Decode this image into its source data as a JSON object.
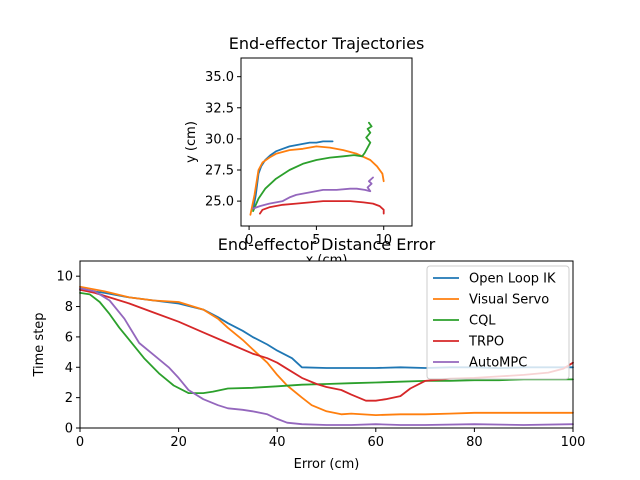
{
  "chart_data": [
    {
      "type": "line",
      "title": "End-effector Trajectories",
      "xlabel": "x (cm)",
      "ylabel": "y (cm)",
      "xlim": [
        -0.6,
        12.1
      ],
      "ylim": [
        23.0,
        36.5
      ],
      "xticks": [
        0,
        5,
        10
      ],
      "xtick_labels": [
        "0",
        "5",
        "10"
      ],
      "yticks": [
        25.0,
        27.5,
        30.0,
        32.5,
        35.0
      ],
      "ytick_labels": [
        "25.0",
        "27.5",
        "30.0",
        "32.5",
        "35.0"
      ],
      "grid": false,
      "series": [
        {
          "color": "#1f77b4",
          "x": [
            0.3,
            0.5,
            0.7,
            0.9,
            1.2,
            1.6,
            2.0,
            2.5,
            3.0,
            3.5,
            4.0,
            4.5,
            5.0,
            5.5,
            6.0,
            6.2
          ],
          "y": [
            24.3,
            25.5,
            27.2,
            27.8,
            28.3,
            28.7,
            29.0,
            29.2,
            29.4,
            29.5,
            29.6,
            29.7,
            29.7,
            29.8,
            29.8,
            29.8
          ]
        },
        {
          "color": "#ff7f0e",
          "x": [
            0.1,
            0.4,
            0.7,
            1.0,
            1.5,
            2.0,
            3.0,
            4.0,
            5.0,
            6.0,
            7.0,
            8.0,
            9.0,
            9.5,
            9.9,
            10.0
          ],
          "y": [
            23.9,
            25.5,
            27.5,
            28.1,
            28.5,
            28.8,
            29.1,
            29.2,
            29.4,
            29.3,
            29.1,
            28.8,
            28.3,
            27.8,
            27.2,
            26.6
          ]
        },
        {
          "color": "#2ca02c",
          "x": [
            0.3,
            0.7,
            1.2,
            2.0,
            3.0,
            4.0,
            5.0,
            6.0,
            7.0,
            7.8,
            8.4,
            8.6,
            8.8,
            9.0,
            8.7,
            9.0,
            8.8,
            9.1,
            8.9
          ],
          "y": [
            24.2,
            25.2,
            26.0,
            26.8,
            27.5,
            28.0,
            28.3,
            28.5,
            28.6,
            28.7,
            28.6,
            28.9,
            29.3,
            29.7,
            30.1,
            30.5,
            30.8,
            31.0,
            31.3
          ]
        },
        {
          "color": "#d62728",
          "x": [
            0.8,
            1.0,
            1.5,
            2.5,
            3.5,
            4.5,
            5.5,
            6.5,
            7.5,
            8.5,
            9.2,
            9.7,
            10.0,
            10.0
          ],
          "y": [
            24.0,
            24.3,
            24.5,
            24.7,
            24.8,
            24.9,
            25.0,
            25.0,
            25.0,
            24.9,
            24.8,
            24.6,
            24.3,
            24.0
          ]
        },
        {
          "color": "#9467bd",
          "x": [
            0.3,
            0.8,
            1.5,
            2.5,
            3.0,
            3.5,
            4.5,
            5.5,
            6.5,
            7.5,
            8.0,
            8.6,
            9.0,
            8.8,
            9.1,
            8.9,
            9.2
          ],
          "y": [
            24.4,
            24.6,
            24.8,
            25.0,
            25.3,
            25.5,
            25.7,
            25.9,
            25.9,
            26.0,
            26.0,
            25.9,
            25.8,
            26.1,
            26.4,
            26.6,
            26.9
          ]
        }
      ]
    },
    {
      "type": "line",
      "title": "End-effector Distance Error",
      "xlabel": "Error (cm)",
      "ylabel": "Time step",
      "xlim": [
        0,
        100
      ],
      "ylim": [
        0,
        11
      ],
      "xticks": [
        0,
        20,
        40,
        60,
        80,
        100
      ],
      "xtick_labels": [
        "0",
        "20",
        "40",
        "60",
        "80",
        "100"
      ],
      "yticks": [
        0,
        2,
        4,
        6,
        8,
        10
      ],
      "ytick_labels": [
        "0",
        "2",
        "4",
        "6",
        "8",
        "10"
      ],
      "grid": false,
      "legend": "top-right",
      "series": [
        {
          "name": "Open Loop IK",
          "color": "#1f77b4",
          "x": [
            0,
            5,
            10,
            15,
            20,
            25,
            28,
            30,
            33,
            35,
            38,
            40,
            43,
            45,
            50,
            55,
            60,
            65,
            70,
            75,
            80,
            85,
            90,
            95,
            100
          ],
          "y": [
            9.1,
            8.9,
            8.6,
            8.4,
            8.2,
            7.8,
            7.3,
            6.9,
            6.4,
            6.0,
            5.5,
            5.1,
            4.6,
            4.0,
            3.95,
            3.95,
            3.95,
            4.0,
            3.95,
            4.0,
            4.0,
            3.95,
            4.0,
            4.0,
            4.0
          ]
        },
        {
          "name": "Visual Servo",
          "color": "#ff7f0e",
          "x": [
            0,
            5,
            10,
            15,
            20,
            25,
            28,
            30,
            33,
            35,
            38,
            40,
            42,
            45,
            47,
            50,
            53,
            55,
            60,
            65,
            70,
            75,
            80,
            85,
            90,
            95,
            100
          ],
          "y": [
            9.3,
            9.0,
            8.6,
            8.4,
            8.3,
            7.8,
            7.2,
            6.6,
            5.8,
            5.2,
            4.3,
            3.5,
            2.8,
            2.0,
            1.5,
            1.1,
            0.9,
            0.95,
            0.85,
            0.9,
            0.9,
            0.95,
            1.0,
            1.0,
            1.0,
            1.0,
            1.0
          ]
        },
        {
          "name": "CQL",
          "color": "#2ca02c",
          "x": [
            0,
            2,
            4,
            6,
            8,
            10,
            13,
            16,
            19,
            22,
            25,
            27,
            30,
            35,
            40,
            45,
            50,
            55,
            60,
            65,
            70,
            75,
            80,
            85,
            90,
            95,
            100
          ],
          "y": [
            8.9,
            8.8,
            8.3,
            7.5,
            6.6,
            5.8,
            4.6,
            3.6,
            2.8,
            2.3,
            2.3,
            2.4,
            2.6,
            2.65,
            2.75,
            2.85,
            2.9,
            2.95,
            3.0,
            3.05,
            3.1,
            3.1,
            3.15,
            3.15,
            3.2,
            3.2,
            3.2
          ]
        },
        {
          "name": "TRPO",
          "color": "#d62728",
          "x": [
            0,
            3,
            6,
            10,
            15,
            20,
            25,
            30,
            35,
            38,
            40,
            42,
            45,
            48,
            50,
            53,
            55,
            58,
            60,
            62,
            65,
            67,
            70,
            75,
            80,
            85,
            90,
            95,
            98,
            100
          ],
          "y": [
            9.1,
            8.9,
            8.6,
            8.2,
            7.6,
            7.0,
            6.3,
            5.6,
            4.9,
            4.6,
            4.3,
            3.9,
            3.3,
            2.9,
            2.7,
            2.5,
            2.2,
            1.8,
            1.8,
            1.9,
            2.1,
            2.6,
            3.1,
            3.25,
            3.3,
            3.4,
            3.5,
            3.65,
            3.9,
            4.3
          ]
        },
        {
          "name": "AutoMPC",
          "color": "#9467bd",
          "x": [
            0,
            3,
            6,
            9,
            12,
            15,
            18,
            20,
            22,
            25,
            28,
            30,
            33,
            35,
            38,
            40,
            42,
            45,
            50,
            55,
            60,
            65,
            70,
            80,
            90,
            100
          ],
          "y": [
            9.2,
            9.0,
            8.4,
            7.2,
            5.6,
            4.8,
            4.0,
            3.3,
            2.5,
            1.9,
            1.5,
            1.3,
            1.2,
            1.1,
            0.9,
            0.6,
            0.35,
            0.25,
            0.2,
            0.2,
            0.25,
            0.2,
            0.2,
            0.25,
            0.2,
            0.25
          ]
        }
      ]
    }
  ]
}
